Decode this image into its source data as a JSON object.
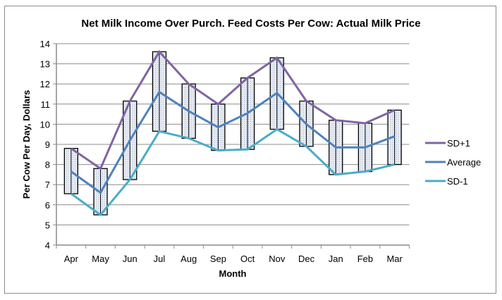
{
  "chart_data": {
    "type": "line",
    "title": "Net Milk Income Over Purch. Feed Costs Per Cow: Actual Milk Price",
    "xlabel": "Month",
    "ylabel": "Per Cow Per Day, Dollars",
    "ylim": [
      4,
      14
    ],
    "yticks": [
      4,
      5,
      6,
      7,
      8,
      9,
      10,
      11,
      12,
      13,
      14
    ],
    "grid": true,
    "legend_position": "right",
    "categories": [
      "Apr",
      "May",
      "Jun",
      "Jul",
      "Aug",
      "Sep",
      "Oct",
      "Nov",
      "Dec",
      "Jan",
      "Feb",
      "Mar"
    ],
    "series": [
      {
        "name": "SD+1",
        "color": "#8064a2",
        "values": [
          8.8,
          7.8,
          11.15,
          13.6,
          12.0,
          11.0,
          12.3,
          13.3,
          11.15,
          10.2,
          10.05,
          10.7
        ]
      },
      {
        "name": "Average",
        "color": "#4f81bd",
        "values": [
          7.65,
          6.6,
          9.2,
          11.6,
          10.65,
          9.85,
          10.55,
          11.55,
          10.0,
          8.85,
          8.85,
          9.4
        ]
      },
      {
        "name": "SD-1",
        "color": "#4bacc6",
        "values": [
          6.55,
          5.5,
          7.25,
          9.65,
          9.3,
          8.7,
          8.75,
          9.75,
          8.9,
          7.5,
          7.65,
          8.0
        ]
      }
    ],
    "range_boxes": {
      "description": "Shaded box spanning SD-1 to SD+1 for each month",
      "fill": "#dde4ef",
      "border": "#000000"
    }
  }
}
